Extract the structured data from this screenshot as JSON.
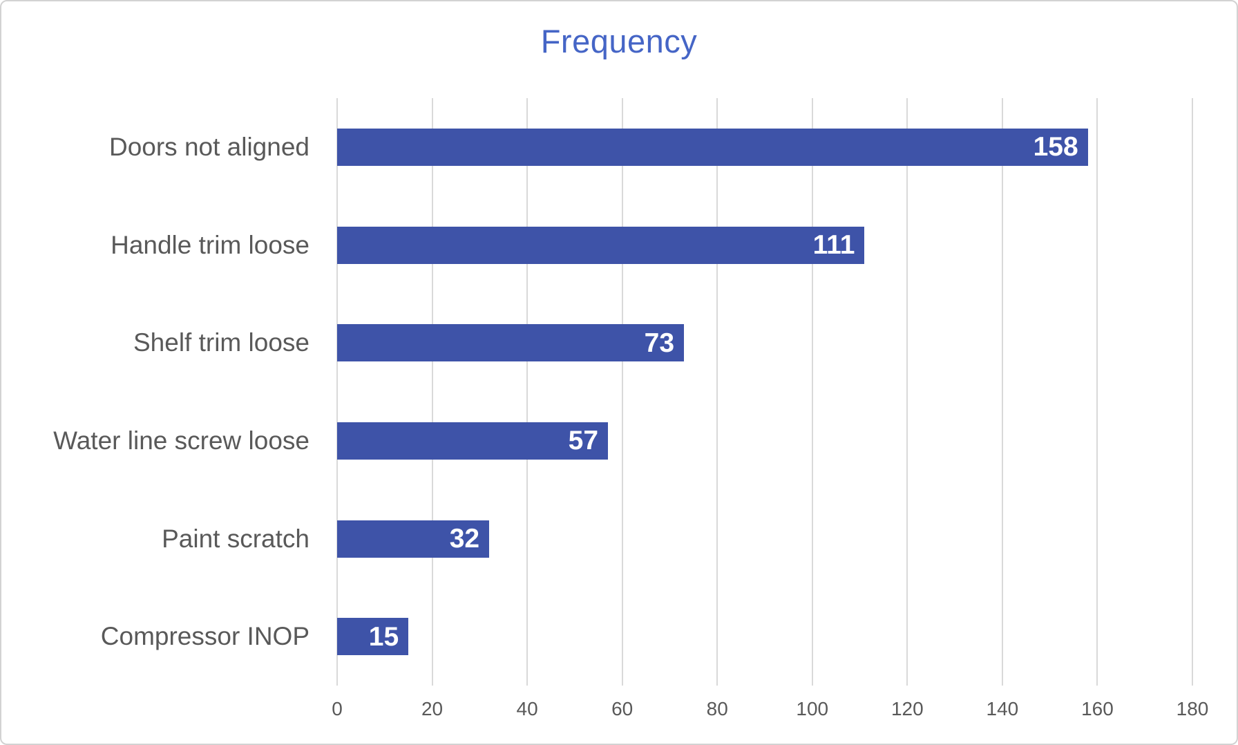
{
  "chart_data": {
    "type": "bar",
    "orientation": "horizontal",
    "title": "Frequency",
    "categories": [
      "Doors not aligned",
      "Handle trim loose",
      "Shelf trim loose",
      "Water line screw loose",
      "Paint scratch",
      "Compressor INOP"
    ],
    "values": [
      158,
      111,
      73,
      57,
      32,
      15
    ],
    "xlabel": "",
    "ylabel": "",
    "xlim": [
      0,
      180
    ],
    "xticks": [
      0,
      20,
      40,
      60,
      80,
      100,
      120,
      140,
      160,
      180
    ],
    "grid": "vertical-only",
    "legend": "none",
    "data_labels_position": "inside-end",
    "colors": {
      "bar": "#3e53a8",
      "title": "#4565c6",
      "category_text": "#595959",
      "tick_text": "#595959",
      "value_text": "#ffffff",
      "gridline": "#d9d9d9",
      "background": "#ffffff",
      "frame_border": "#d2d2d2"
    }
  }
}
